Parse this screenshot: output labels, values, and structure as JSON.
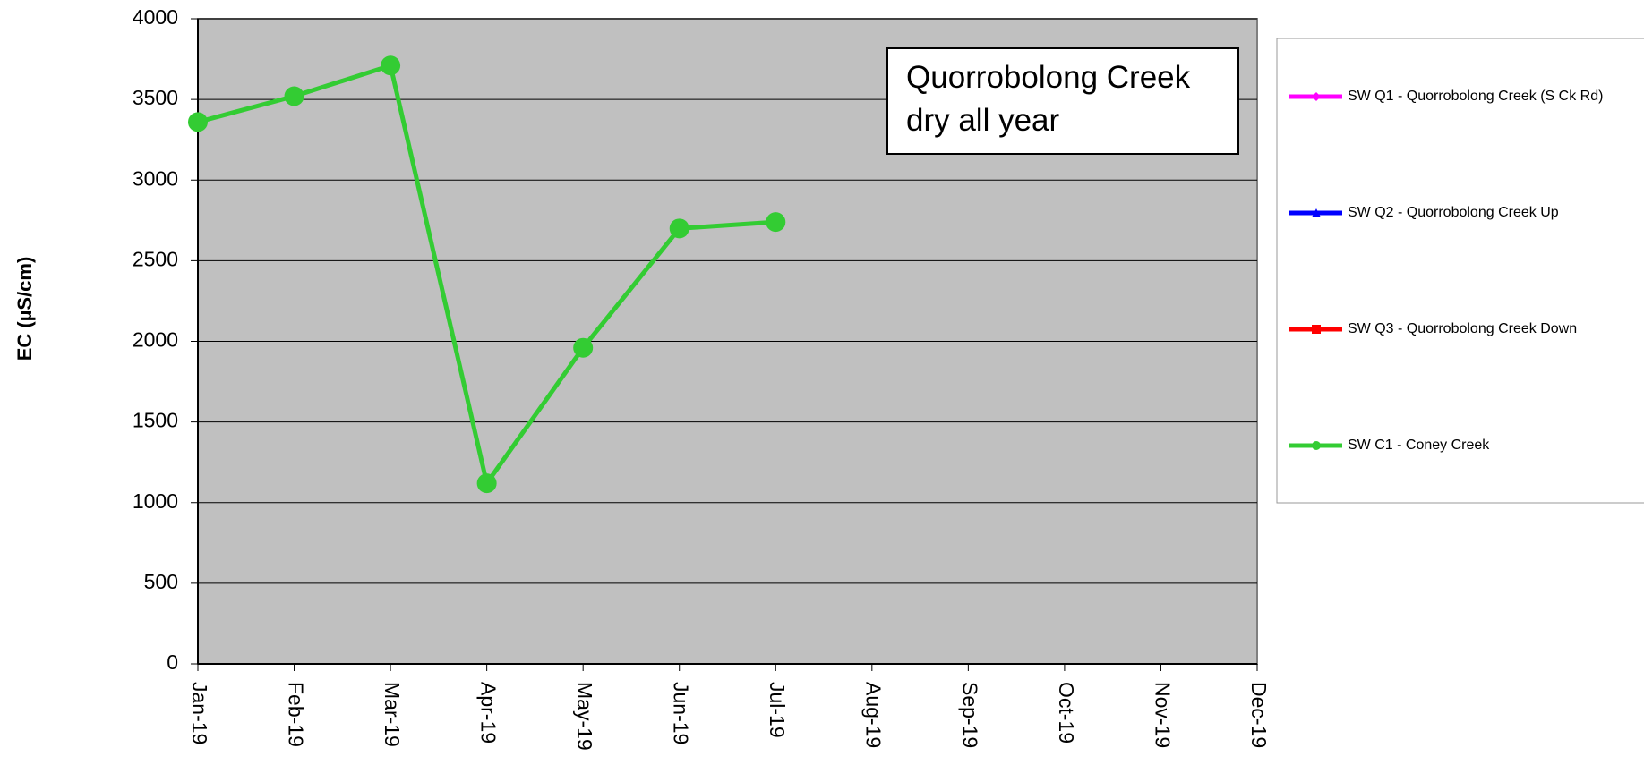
{
  "chart_data": {
    "type": "line",
    "y_label": "EC (µS/cm)",
    "annotation": "Quorrobolong Creek dry all year",
    "categories": [
      "Jan-19",
      "Feb-19",
      "Mar-19",
      "Apr-19",
      "May-19",
      "Jun-19",
      "Jul-19",
      "Aug-19",
      "Sep-19",
      "Oct-19",
      "Nov-19",
      "Dec-19"
    ],
    "series": [
      {
        "name": "SW Q1 - Quorrobolong Creek (S Ck Rd)",
        "color": "#ff00ff",
        "marker": "diamond",
        "values": [
          null,
          null,
          null,
          null,
          null,
          null,
          null,
          null,
          null,
          null,
          null,
          null
        ]
      },
      {
        "name": "SW Q2 - Quorrobolong Creek Up",
        "color": "#0000ff",
        "marker": "triangle",
        "values": [
          null,
          null,
          null,
          null,
          null,
          null,
          null,
          null,
          null,
          null,
          null,
          null
        ]
      },
      {
        "name": "SW Q3 - Quorrobolong Creek Down",
        "color": "#ff0000",
        "marker": "square",
        "values": [
          null,
          null,
          null,
          null,
          null,
          null,
          null,
          null,
          null,
          null,
          null,
          null
        ]
      },
      {
        "name": "SW C1 - Coney Creek",
        "color": "#33cc33",
        "marker": "circle",
        "values": [
          3360,
          3520,
          3710,
          1120,
          1960,
          2700,
          2740,
          null,
          null,
          null,
          null,
          null
        ]
      }
    ],
    "ylim": [
      0,
      4000
    ],
    "yticks": [
      0,
      500,
      1000,
      1500,
      2000,
      2500,
      3000,
      3500,
      4000
    ],
    "grid": true,
    "legend": "right"
  }
}
